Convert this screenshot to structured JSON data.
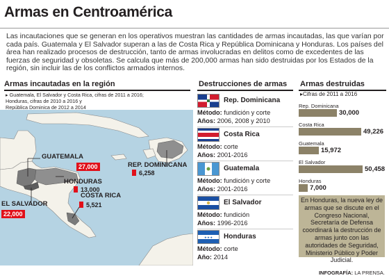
{
  "title": "Armas en Centroamérica",
  "intro": "Las incautaciones que se generan en los operativos muestran las cantidades de armas incautadas, las que varían por cada país. Guatemala y El Salvador superan a las de Costa Rica y República Dominicana y Honduras. Los países del área han realizado procesos de destrucción, tanto de armas involucradas en delitos como de excedentes de las fuerzas de seguridad y obsoletas. Se calcula que más de 200,000 armas han sido destruidas por los Estados de la región, sin incluir las de los conflictos armados internos.",
  "map": {
    "title": "Armas incautadas en la región",
    "sub_lines": [
      "Guatemala, El Salvador y Costa Rica, cifras de 2011 a 2016;",
      "Honduras, cifras de 2010 a 2016 y",
      "República Dominica de 2012 a 2014"
    ],
    "countries": [
      {
        "name": "GUATEMALA",
        "value": "27,000"
      },
      {
        "name": "HONDURAS",
        "value": "13,000"
      },
      {
        "name": "REP. DOMINICANA",
        "value": "6,258"
      },
      {
        "name": "COSTA RICA",
        "value": "5,521"
      },
      {
        "name": "EL SALVADOR",
        "value": "22,000"
      }
    ]
  },
  "destruction": {
    "title": "Destrucciones de armas",
    "method_label": "Método:",
    "period_label": "Año:",
    "period_label_range": "Años:",
    "rows": [
      {
        "name": "Rep. Dominicana",
        "method": "fundición y corte",
        "period": "2006, 2008 y 2010",
        "flag": "dominican-flag-icon"
      },
      {
        "name": "Costa Rica",
        "method": "corte",
        "period": "2001-2016",
        "flag": "costa-rica-flag-icon"
      },
      {
        "name": "Guatemala",
        "method": "fundición y corte",
        "period": "2001-2016",
        "flag": "guatemala-flag-icon"
      },
      {
        "name": "El Salvador",
        "method": "fundición",
        "period": "1996-2016",
        "flag": "el-salvador-flag-icon"
      },
      {
        "name": "Honduras",
        "method": "corte",
        "period": "2014",
        "flag": "honduras-flag-icon"
      }
    ]
  },
  "chart_data": {
    "type": "bar",
    "title": "Armas destruidas",
    "subtitle": "Cifras de 2011 a 2016",
    "categories": [
      "Rep. Dominicana",
      "Costa Rica",
      "Guatemala",
      "El Salvador",
      "Honduras"
    ],
    "values": [
      30000,
      49226,
      15972,
      50458,
      7000
    ],
    "value_labels": [
      "30,000",
      "49,226",
      "15,972",
      "50,458",
      "7,000"
    ],
    "color": "#8c8268"
  },
  "note": "En Honduras, la nueva ley de armas que se discute en el Congreso Nacional, Secretaría de Defensa coordinará la destrucción de armas junto con las autoridades de Seguridad, Ministerio Público y Poder Judicial.",
  "credit_bold": "INFOGRAFÍA:",
  "credit": "LA PRENSA.",
  "colors": {
    "accent_red": "#e1101a",
    "bar": "#8c8268",
    "note_bg": "#bdb597",
    "sea": "#b5d3e3",
    "land": "#f4f2ea"
  }
}
